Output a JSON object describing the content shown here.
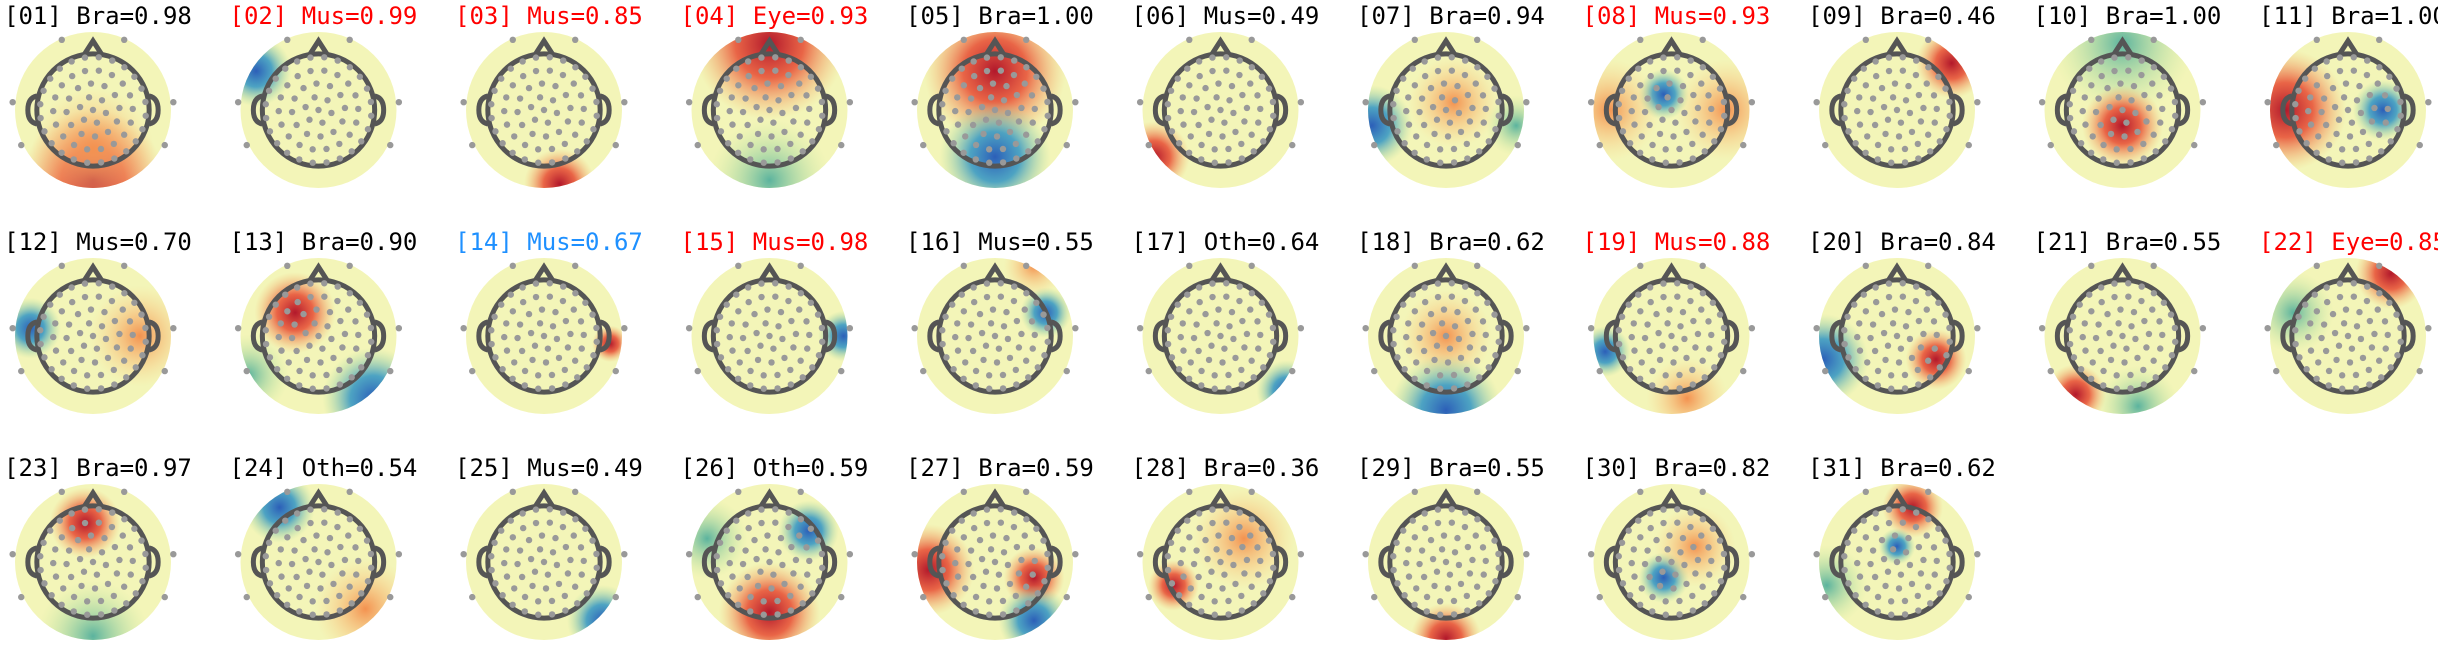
{
  "components": [
    {
      "label": "[01] Bra=0.98",
      "color": "#000000"
    },
    {
      "label": "[02] Mus=0.99",
      "color": "#ff0000"
    },
    {
      "label": "[03] Mus=0.85",
      "color": "#ff0000"
    },
    {
      "label": "[04] Eye=0.93",
      "color": "#ff0000"
    },
    {
      "label": "[05] Bra=1.00",
      "color": "#000000"
    },
    {
      "label": "[06] Mus=0.49",
      "color": "#000000"
    },
    {
      "label": "[07] Bra=0.94",
      "color": "#000000"
    },
    {
      "label": "[08] Mus=0.93",
      "color": "#ff0000"
    },
    {
      "label": "[09] Bra=0.46",
      "color": "#000000"
    },
    {
      "label": "[10] Bra=1.00",
      "color": "#000000"
    },
    {
      "label": "[11] Bra=1.00",
      "color": "#000000"
    },
    {
      "label": "[12] Mus=0.70",
      "color": "#000000"
    },
    {
      "label": "[13] Bra=0.90",
      "color": "#000000"
    },
    {
      "label": "[14] Mus=0.67",
      "color": "#1e90ff"
    },
    {
      "label": "[15] Mus=0.98",
      "color": "#ff0000"
    },
    {
      "label": "[16] Mus=0.55",
      "color": "#000000"
    },
    {
      "label": "[17] Oth=0.64",
      "color": "#000000"
    },
    {
      "label": "[18] Bra=0.62",
      "color": "#000000"
    },
    {
      "label": "[19] Mus=0.88",
      "color": "#ff0000"
    },
    {
      "label": "[20] Bra=0.84",
      "color": "#000000"
    },
    {
      "label": "[21] Bra=0.55",
      "color": "#000000"
    },
    {
      "label": "[22] Eye=0.85",
      "color": "#ff0000"
    },
    {
      "label": "[23] Bra=0.97",
      "color": "#000000"
    },
    {
      "label": "[24] Oth=0.54",
      "color": "#000000"
    },
    {
      "label": "[25] Mus=0.49",
      "color": "#000000"
    },
    {
      "label": "[26] Oth=0.59",
      "color": "#000000"
    },
    {
      "label": "[27] Bra=0.59",
      "color": "#000000"
    },
    {
      "label": "[28] Bra=0.36",
      "color": "#000000"
    },
    {
      "label": "[29] Bra=0.55",
      "color": "#000000"
    },
    {
      "label": "[30] Bra=0.82",
      "color": "#000000"
    },
    {
      "label": "[31] Bra=0.62",
      "color": "#000000"
    }
  ]
}
